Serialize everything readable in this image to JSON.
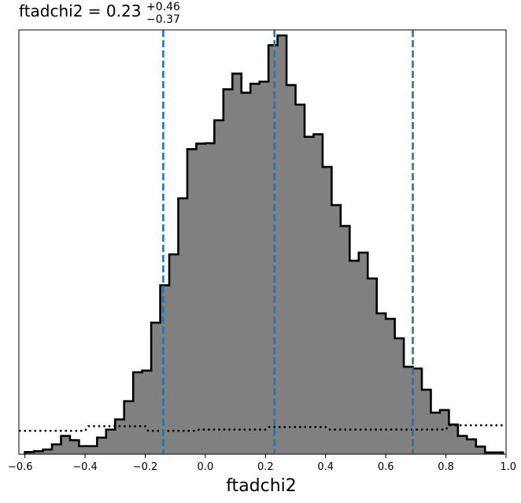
{
  "chart_data": {
    "type": "histogram",
    "title": {
      "prefix": "ftadchi2 = 0.23",
      "upper": "+0.46",
      "lower": "−0.37"
    },
    "xlabel": "ftadchi2",
    "ylabel": "",
    "xlim": [
      -0.62,
      1.0
    ],
    "ylim": [
      0,
      1
    ],
    "xticks": [
      -0.6,
      -0.4,
      -0.2,
      0.0,
      0.2,
      0.4,
      0.6,
      0.8,
      1.0
    ],
    "xtick_labels": [
      "−0.6",
      "−0.4",
      "−0.2",
      "0.0",
      "0.2",
      "0.4",
      "0.6",
      "0.8",
      "1.0"
    ],
    "grid": false,
    "bin_edges": [
      -0.6,
      -0.57,
      -0.54,
      -0.51,
      -0.48,
      -0.45,
      -0.42,
      -0.39,
      -0.36,
      -0.33,
      -0.3,
      -0.27,
      -0.24,
      -0.21,
      -0.18,
      -0.15,
      -0.12,
      -0.09,
      -0.06,
      -0.03,
      0.0,
      0.03,
      0.06,
      0.09,
      0.12,
      0.15,
      0.18,
      0.21,
      0.24,
      0.27,
      0.3,
      0.33,
      0.36,
      0.39,
      0.42,
      0.45,
      0.48,
      0.51,
      0.54,
      0.57,
      0.6,
      0.63,
      0.66,
      0.69,
      0.72,
      0.75,
      0.78,
      0.81,
      0.84,
      0.87,
      0.9,
      0.93,
      0.96,
      0.99
    ],
    "posterior_counts": [
      0.005,
      0.007,
      0.011,
      0.023,
      0.043,
      0.033,
      0.019,
      0.019,
      0.039,
      0.058,
      0.082,
      0.125,
      0.193,
      0.197,
      0.31,
      0.398,
      0.471,
      0.603,
      0.719,
      0.732,
      0.733,
      0.787,
      0.86,
      0.897,
      0.852,
      0.873,
      0.878,
      0.964,
      0.987,
      0.87,
      0.824,
      0.748,
      0.754,
      0.677,
      0.587,
      0.538,
      0.456,
      0.475,
      0.414,
      0.332,
      0.319,
      0.273,
      0.206,
      0.202,
      0.152,
      0.098,
      0.104,
      0.07,
      0.043,
      0.035,
      0.018,
      0.004,
      0.004
    ],
    "prior_dotted": [
      {
        "x": -0.62,
        "y": 0.055
      },
      {
        "x": -0.4,
        "y": 0.055
      },
      {
        "x": -0.39,
        "y": 0.066
      },
      {
        "x": -0.2,
        "y": 0.066
      },
      {
        "x": -0.19,
        "y": 0.055
      },
      {
        "x": -0.03,
        "y": 0.055
      },
      {
        "x": -0.02,
        "y": 0.058
      },
      {
        "x": 0.2,
        "y": 0.058
      },
      {
        "x": 0.21,
        "y": 0.064
      },
      {
        "x": 0.4,
        "y": 0.064
      },
      {
        "x": 0.41,
        "y": 0.058
      },
      {
        "x": 0.8,
        "y": 0.058
      },
      {
        "x": 0.81,
        "y": 0.068
      },
      {
        "x": 1.0,
        "y": 0.068
      }
    ],
    "vlines": [
      -0.14,
      0.23,
      0.69
    ],
    "colors": {
      "fill": "#808080",
      "edge": "#000000",
      "vline": "#1f77b4",
      "prior": "#000000"
    }
  }
}
